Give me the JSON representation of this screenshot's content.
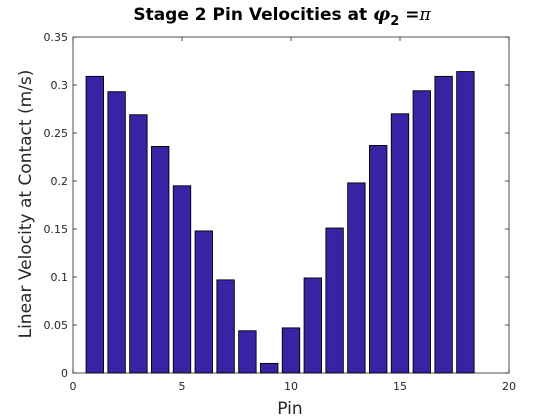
{
  "chart_data": {
    "type": "bar",
    "title": {
      "prefix": "Stage 2 Pin Velocities at ",
      "symbol": "φ",
      "subscript": "2",
      "suffix": " =",
      "pi": "π"
    },
    "xlabel": "Pin",
    "ylabel": "Linear Velocity at Contact (m/s)",
    "xlim": [
      0,
      20
    ],
    "ylim": [
      0,
      0.35
    ],
    "xticks": [
      0,
      5,
      10,
      15,
      20
    ],
    "yticks": [
      0,
      0.05,
      0.1,
      0.15,
      0.2,
      0.25,
      0.3,
      0.35
    ],
    "grid": false,
    "bar_color": "#3a22a4",
    "x": [
      1,
      2,
      3,
      4,
      5,
      6,
      7,
      8,
      9,
      10,
      11,
      12,
      13,
      14,
      15,
      16,
      17,
      18
    ],
    "values": [
      0.309,
      0.293,
      0.269,
      0.236,
      0.195,
      0.148,
      0.097,
      0.044,
      0.01,
      0.047,
      0.099,
      0.151,
      0.198,
      0.237,
      0.27,
      0.294,
      0.309,
      0.314
    ]
  }
}
